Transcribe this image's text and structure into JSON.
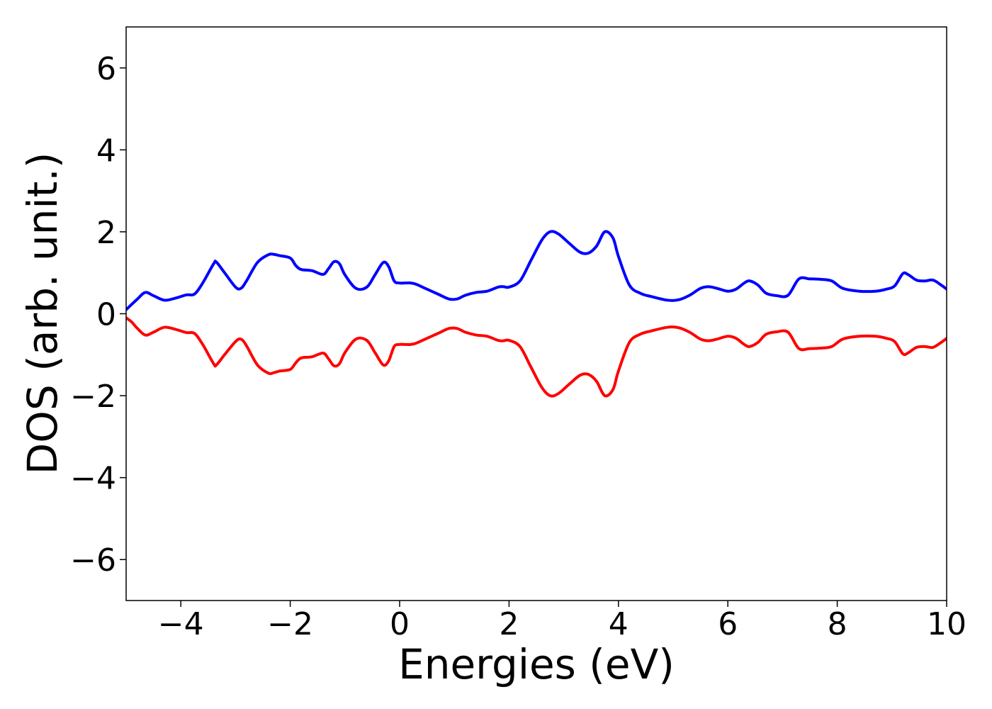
{
  "chart_data": {
    "type": "line",
    "title": "",
    "xlabel": "Energies (eV)",
    "ylabel": "DOS (arb. unit.)",
    "xlim": [
      -5,
      10
    ],
    "ylim": [
      -7,
      7
    ],
    "xticks": [
      -4,
      -2,
      0,
      2,
      4,
      6,
      8,
      10
    ],
    "xtick_labels": [
      "−4",
      "−2",
      "0",
      "2",
      "4",
      "6",
      "8",
      "10"
    ],
    "yticks": [
      -6,
      -4,
      -2,
      0,
      2,
      4,
      6
    ],
    "ytick_labels": [
      "−6",
      "−4",
      "−2",
      "0",
      "2",
      "4",
      "6"
    ],
    "grid": false,
    "legend": "none",
    "series": [
      {
        "color": "#0000ff",
        "x": [
          -5.0,
          -4.8,
          -4.65,
          -4.5,
          -4.3,
          -4.1,
          -3.9,
          -3.75,
          -3.6,
          -3.4,
          -3.35,
          -3.2,
          -3.0,
          -2.9,
          -2.8,
          -2.6,
          -2.4,
          -2.3,
          -2.2,
          -2.0,
          -1.9,
          -1.8,
          -1.6,
          -1.4,
          -1.3,
          -1.2,
          -1.1,
          -1.0,
          -0.8,
          -0.6,
          -0.45,
          -0.3,
          -0.2,
          -0.1,
          0.0,
          0.1,
          0.2,
          0.3,
          0.5,
          0.7,
          0.9,
          1.05,
          1.2,
          1.4,
          1.6,
          1.8,
          1.9,
          2.0,
          2.2,
          2.4,
          2.6,
          2.75,
          2.9,
          3.1,
          3.3,
          3.45,
          3.6,
          3.75,
          3.9,
          4.0,
          4.2,
          4.4,
          4.6,
          4.9,
          5.1,
          5.3,
          5.5,
          5.65,
          5.8,
          6.0,
          6.15,
          6.3,
          6.4,
          6.55,
          6.7,
          6.9,
          7.1,
          7.3,
          7.5,
          7.7,
          7.9,
          8.1,
          8.4,
          8.7,
          8.9,
          9.05,
          9.2,
          9.3,
          9.45,
          9.6,
          9.75,
          9.9,
          10.0
        ],
        "y": [
          0.1,
          0.35,
          0.52,
          0.44,
          0.33,
          0.38,
          0.46,
          0.48,
          0.75,
          1.22,
          1.26,
          1.0,
          0.65,
          0.62,
          0.8,
          1.25,
          1.44,
          1.45,
          1.42,
          1.36,
          1.18,
          1.08,
          1.05,
          0.96,
          1.1,
          1.27,
          1.22,
          0.95,
          0.62,
          0.65,
          0.95,
          1.25,
          1.15,
          0.8,
          0.75,
          0.75,
          0.75,
          0.72,
          0.6,
          0.48,
          0.36,
          0.36,
          0.45,
          0.52,
          0.55,
          0.65,
          0.66,
          0.65,
          0.8,
          1.3,
          1.8,
          2.0,
          1.95,
          1.72,
          1.5,
          1.48,
          1.65,
          2.0,
          1.85,
          1.4,
          0.7,
          0.5,
          0.42,
          0.33,
          0.34,
          0.45,
          0.62,
          0.66,
          0.62,
          0.55,
          0.6,
          0.75,
          0.8,
          0.7,
          0.5,
          0.44,
          0.45,
          0.85,
          0.85,
          0.84,
          0.8,
          0.62,
          0.55,
          0.55,
          0.6,
          0.68,
          0.98,
          0.95,
          0.82,
          0.8,
          0.82,
          0.7,
          0.6
        ]
      },
      {
        "color": "#ff0000",
        "x": [
          -5.0,
          -4.9,
          -4.8,
          -4.65,
          -4.5,
          -4.3,
          -4.1,
          -3.9,
          -3.75,
          -3.6,
          -3.4,
          -3.35,
          -3.2,
          -3.0,
          -2.9,
          -2.8,
          -2.6,
          -2.4,
          -2.3,
          -2.2,
          -2.0,
          -1.9,
          -1.8,
          -1.6,
          -1.4,
          -1.3,
          -1.2,
          -1.1,
          -1.0,
          -0.8,
          -0.6,
          -0.45,
          -0.3,
          -0.2,
          -0.1,
          0.0,
          0.1,
          0.2,
          0.3,
          0.5,
          0.7,
          0.9,
          1.05,
          1.2,
          1.4,
          1.6,
          1.8,
          1.9,
          2.0,
          2.2,
          2.4,
          2.6,
          2.75,
          2.9,
          3.1,
          3.3,
          3.45,
          3.6,
          3.75,
          3.9,
          4.0,
          4.2,
          4.4,
          4.6,
          4.9,
          5.1,
          5.3,
          5.5,
          5.65,
          5.8,
          6.0,
          6.15,
          6.3,
          6.4,
          6.55,
          6.7,
          6.9,
          7.1,
          7.3,
          7.5,
          7.7,
          7.9,
          8.1,
          8.4,
          8.7,
          8.9,
          9.05,
          9.2,
          9.3,
          9.45,
          9.6,
          9.75,
          9.9,
          10.0
        ],
        "y": [
          -0.1,
          -0.2,
          -0.35,
          -0.52,
          -0.45,
          -0.33,
          -0.38,
          -0.46,
          -0.48,
          -0.75,
          -1.22,
          -1.25,
          -1.0,
          -0.68,
          -0.62,
          -0.78,
          -1.25,
          -1.45,
          -1.44,
          -1.4,
          -1.36,
          -1.2,
          -1.08,
          -1.05,
          -0.96,
          -1.1,
          -1.27,
          -1.22,
          -0.95,
          -0.62,
          -0.65,
          -0.95,
          -1.25,
          -1.15,
          -0.8,
          -0.75,
          -0.75,
          -0.75,
          -0.72,
          -0.6,
          -0.48,
          -0.36,
          -0.36,
          -0.45,
          -0.52,
          -0.55,
          -0.65,
          -0.66,
          -0.65,
          -0.8,
          -1.3,
          -1.8,
          -2.0,
          -1.95,
          -1.72,
          -1.5,
          -1.48,
          -1.65,
          -2.0,
          -1.85,
          -1.4,
          -0.7,
          -0.5,
          -0.42,
          -0.33,
          -0.34,
          -0.45,
          -0.62,
          -0.66,
          -0.62,
          -0.55,
          -0.6,
          -0.75,
          -0.8,
          -0.7,
          -0.5,
          -0.44,
          -0.45,
          -0.85,
          -0.85,
          -0.84,
          -0.8,
          -0.62,
          -0.55,
          -0.55,
          -0.6,
          -0.68,
          -0.98,
          -0.95,
          -0.82,
          -0.8,
          -0.82,
          -0.7,
          -0.6
        ]
      }
    ]
  }
}
